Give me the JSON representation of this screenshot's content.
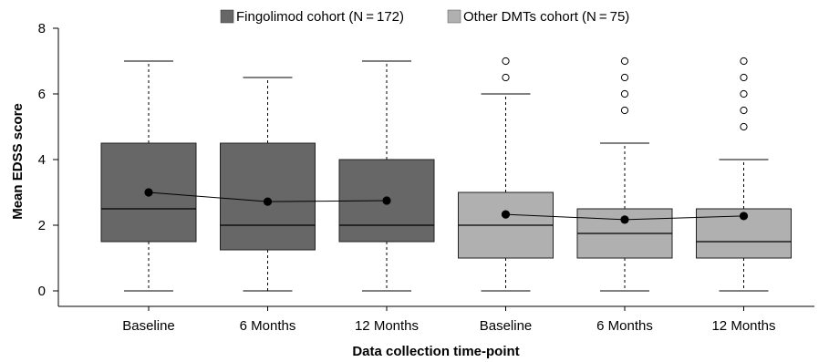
{
  "chart_data": {
    "type": "boxplot",
    "xlabel": "Data collection time-point",
    "ylabel": "Mean EDSS score",
    "ylim": [
      0,
      8
    ],
    "yticks": [
      0,
      2,
      4,
      6,
      8
    ],
    "grid": false,
    "legend_position": "top",
    "categories": [
      "Baseline",
      "6 Months",
      "12 Months",
      "Baseline",
      "6 Months",
      "12 Months"
    ],
    "series": [
      {
        "name": "Fingolimod cohort (N = 172)",
        "color": "#676767",
        "boxes": [
          {
            "category_index": 0,
            "whisker_low": 0,
            "q1": 1.5,
            "median": 2.5,
            "q3": 4.5,
            "whisker_high": 7.0,
            "mean": 3.0,
            "outliers": []
          },
          {
            "category_index": 1,
            "whisker_low": 0,
            "q1": 1.25,
            "median": 2.0,
            "q3": 4.5,
            "whisker_high": 6.5,
            "mean": 2.72,
            "outliers": []
          },
          {
            "category_index": 2,
            "whisker_low": 0,
            "q1": 1.5,
            "median": 2.0,
            "q3": 4.0,
            "whisker_high": 7.0,
            "mean": 2.75,
            "outliers": []
          }
        ]
      },
      {
        "name": "Other DMTs cohort (N = 75)",
        "color": "#b0b0b0",
        "boxes": [
          {
            "category_index": 3,
            "whisker_low": 0,
            "q1": 1.0,
            "median": 2.0,
            "q3": 3.0,
            "whisker_high": 6.0,
            "mean": 2.33,
            "outliers": [
              6.5,
              7.0
            ]
          },
          {
            "category_index": 4,
            "whisker_low": 0,
            "q1": 1.0,
            "median": 1.75,
            "q3": 2.5,
            "whisker_high": 4.5,
            "mean": 2.17,
            "outliers": [
              5.5,
              6.0,
              6.5,
              7.0
            ]
          },
          {
            "category_index": 5,
            "whisker_low": 0,
            "q1": 1.0,
            "median": 1.5,
            "q3": 2.5,
            "whisker_high": 4.0,
            "mean": 2.28,
            "outliers": [
              5.0,
              5.5,
              6.0,
              6.5,
              7.0
            ]
          }
        ]
      }
    ]
  }
}
